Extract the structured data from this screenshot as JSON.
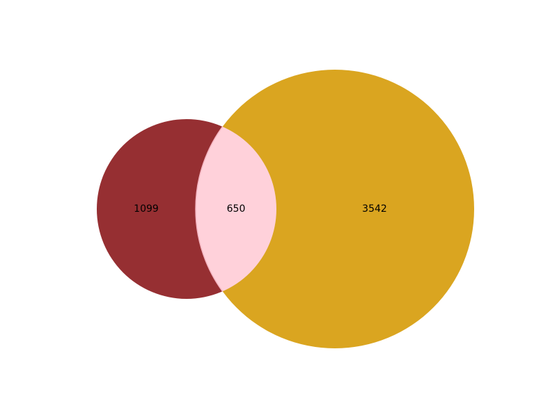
{
  "diagram": {
    "type": "venn2",
    "colors": {
      "set_a": "#962f32",
      "set_b": "#daa520",
      "intersection": "#ffd1da",
      "intersection_edge": "#f4b6c2"
    },
    "regions": {
      "a_only": "1099",
      "intersection": "650",
      "b_only": "3542"
    }
  }
}
